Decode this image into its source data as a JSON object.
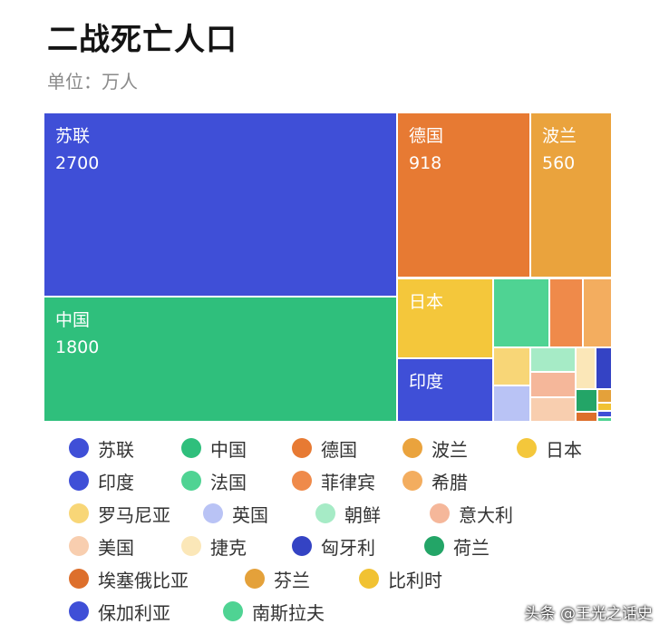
{
  "title": "二战死亡人口",
  "subtitle": "单位：万人",
  "watermark": "头条 @王光之话史",
  "chart_data": {
    "type": "treemap",
    "unit": "万人",
    "items": [
      {
        "name": "苏联",
        "value": 2700,
        "color": "#3f4fd7"
      },
      {
        "name": "中国",
        "value": 1800,
        "color": "#2fbf7c"
      },
      {
        "name": "德国",
        "value": 918,
        "color": "#e77a33"
      },
      {
        "name": "波兰",
        "value": 560,
        "color": "#eaa33d"
      },
      {
        "name": "日本",
        "color": "#f4c73b"
      },
      {
        "name": "印度",
        "color": "#3f4fd7"
      },
      {
        "name": "法国",
        "color": "#4fd393"
      },
      {
        "name": "菲律宾",
        "color": "#ef8a4a"
      },
      {
        "name": "希腊",
        "color": "#f3ad5f"
      },
      {
        "name": "罗马尼亚",
        "color": "#f8d677"
      },
      {
        "name": "英国",
        "color": "#b9c3f5"
      },
      {
        "name": "朝鲜",
        "color": "#a6ebc6"
      },
      {
        "name": "意大利",
        "color": "#f5b79a"
      },
      {
        "name": "美国",
        "color": "#f8ceaf"
      },
      {
        "name": "捷克",
        "color": "#fbe7b8"
      },
      {
        "name": "匈牙利",
        "color": "#3443c4"
      },
      {
        "name": "荷兰",
        "color": "#23a567"
      },
      {
        "name": "埃塞俄比亚",
        "color": "#dd6f2c"
      },
      {
        "name": "芬兰",
        "color": "#e4a13a"
      },
      {
        "name": "比利时",
        "color": "#f1c232"
      },
      {
        "name": "保加利亚",
        "color": "#3f4fd7"
      },
      {
        "name": "南斯拉夫",
        "color": "#4fd393"
      }
    ]
  }
}
